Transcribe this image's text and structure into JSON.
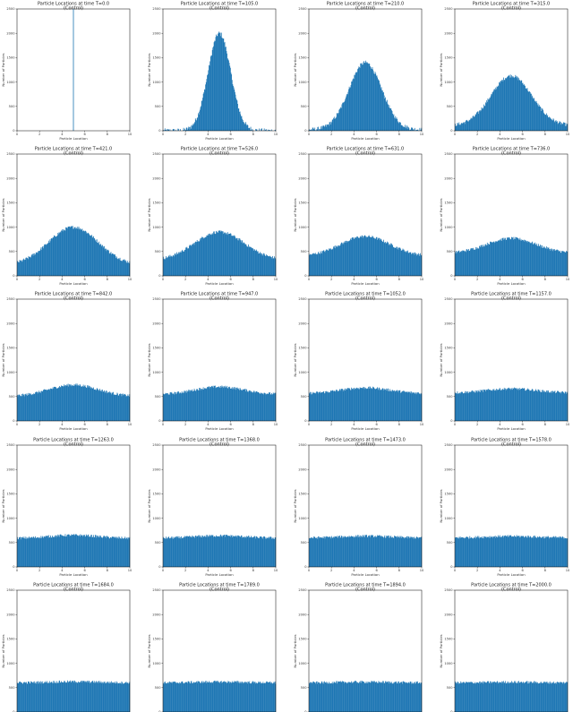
{
  "figure": {
    "subplots": [
      {
        "title": "Particle Locations at time T=0.0",
        "subtitle": "(Control)"
      },
      {
        "title": "Particle Locations at time T=105.0",
        "subtitle": "(Control)"
      },
      {
        "title": "Particle Locations at time T=210.0",
        "subtitle": "(Control)"
      },
      {
        "title": "Particle Locations at time T=315.0",
        "subtitle": "(Control)"
      },
      {
        "title": "Particle Locations at time T=421.0",
        "subtitle": "(Control)"
      },
      {
        "title": "Particle Locations at time T=526.0",
        "subtitle": "(Control)"
      },
      {
        "title": "Particle Locations at time T=631.0",
        "subtitle": "(Control)"
      },
      {
        "title": "Particle Locations at time T=736.0",
        "subtitle": "(Control)"
      },
      {
        "title": "Particle Locations at time T=842.0",
        "subtitle": "(Control)"
      },
      {
        "title": "Particle Locations at time T=947.0",
        "subtitle": "(Control)"
      },
      {
        "title": "Particle Locations at time T=1052.0",
        "subtitle": "(Control)"
      },
      {
        "title": "Particle Locations at time T=1157.0",
        "subtitle": "(Control)"
      },
      {
        "title": "Particle Locations at time T=1263.0",
        "subtitle": "(Control)"
      },
      {
        "title": "Particle Locations at time T=1368.0",
        "subtitle": "(Control)"
      },
      {
        "title": "Particle Locations at time T=1473.0",
        "subtitle": "(Control)"
      },
      {
        "title": "Particle Locations at time T=1578.0",
        "subtitle": "(Control)"
      },
      {
        "title": "Particle Locations at time T=1684.0",
        "subtitle": "(Control)"
      },
      {
        "title": "Particle Locations at time T=1789.0",
        "subtitle": "(Control)"
      },
      {
        "title": "Particle Locations at time T=1894.0",
        "subtitle": "(Control)"
      },
      {
        "title": "Particle Locations at time T=2000.0",
        "subtitle": "(Control)"
      }
    ],
    "xlabel": "Particle Location",
    "ylabel": "Number of Particles",
    "x_ticks": [
      0,
      2,
      4,
      6,
      8,
      10
    ],
    "y_ticks": [
      0,
      500,
      1000,
      1500,
      2000,
      2500
    ],
    "bar_color": "#1f77b4"
  },
  "chart_data": {
    "type": "bar",
    "note_type": "histogram grid (5 rows x 4 columns)",
    "x_range": [
      0,
      10
    ],
    "ylim": [
      0,
      2500
    ],
    "grid": false,
    "legend": "none",
    "bin_count": 200,
    "panels": [
      {
        "time": 0.0,
        "peak": 2500,
        "baseline": 0,
        "spike_at": 5.0
      },
      {
        "time": 105.0,
        "peak": 2000,
        "baseline": 0
      },
      {
        "time": 210.0,
        "peak": 1400,
        "baseline": 20
      },
      {
        "time": 315.0,
        "peak": 1130,
        "baseline": 100
      },
      {
        "time": 421.0,
        "peak": 1000,
        "baseline": 220
      },
      {
        "time": 526.0,
        "peak": 900,
        "baseline": 320
      },
      {
        "time": 631.0,
        "peak": 810,
        "baseline": 400
      },
      {
        "time": 736.0,
        "peak": 770,
        "baseline": 460
      },
      {
        "time": 842.0,
        "peak": 740,
        "baseline": 500
      },
      {
        "time": 947.0,
        "peak": 700,
        "baseline": 540
      },
      {
        "time": 1052.0,
        "peak": 680,
        "baseline": 560
      },
      {
        "time": 1157.0,
        "peak": 660,
        "baseline": 575
      },
      {
        "time": 1263.0,
        "peak": 650,
        "baseline": 585
      },
      {
        "time": 1368.0,
        "peak": 640,
        "baseline": 590
      },
      {
        "time": 1473.0,
        "peak": 632,
        "baseline": 595
      },
      {
        "time": 1578.0,
        "peak": 628,
        "baseline": 598
      },
      {
        "time": 1684.0,
        "peak": 622,
        "baseline": 600
      },
      {
        "time": 1789.0,
        "peak": 618,
        "baseline": 600
      },
      {
        "time": 1894.0,
        "peak": 615,
        "baseline": 600
      },
      {
        "time": 2000.0,
        "peak": 612,
        "baseline": 600
      }
    ]
  }
}
